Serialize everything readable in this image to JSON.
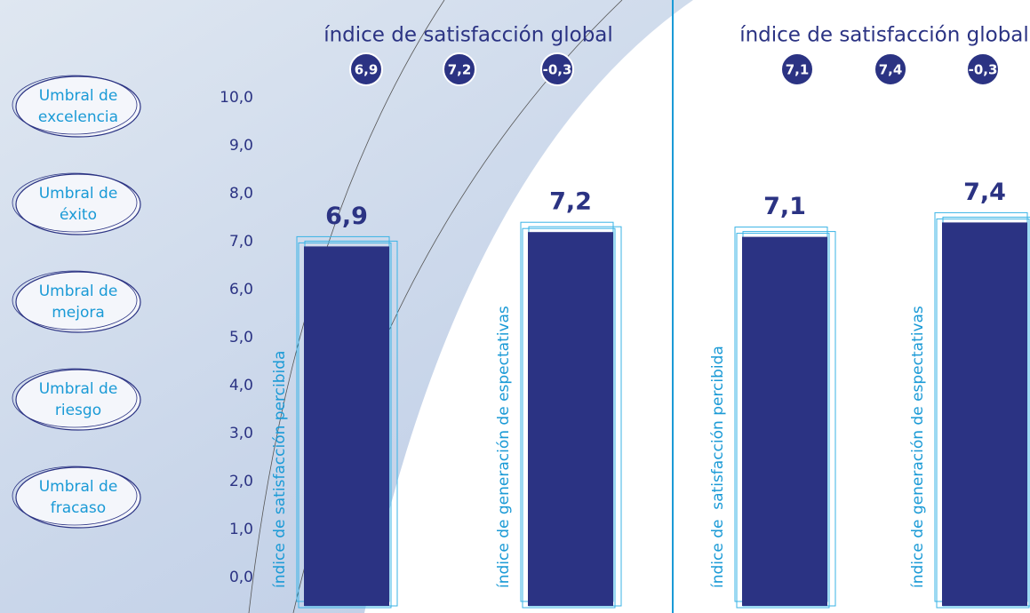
{
  "thresholds": [
    "Umbral de excelencia",
    "Umbral de éxito",
    "Umbral de mejora",
    "Umbral de riesgo",
    "Umbral de fracaso"
  ],
  "chart_data": [
    {
      "type": "bar",
      "title": "índice de satisfacción global",
      "global_index": {
        "values": [
          6.9,
          7.2,
          -0.3
        ],
        "value_labels": [
          "6,9",
          "7,2",
          "-0,3"
        ]
      },
      "categories": [
        "índice de satisfacción percibida",
        "índice de generación de espectativas"
      ],
      "values": [
        6.9,
        7.2
      ],
      "value_labels": [
        "6,9",
        "7,2"
      ],
      "color": "#2b3383",
      "ylim": [
        0,
        10
      ],
      "yticks": [
        {
          "value": 0,
          "label": "0,0"
        },
        {
          "value": 1,
          "label": "1,0"
        },
        {
          "value": 2,
          "label": "2,0"
        },
        {
          "value": 3,
          "label": "3,0"
        },
        {
          "value": 4,
          "label": "4,0"
        },
        {
          "value": 5,
          "label": "5,0"
        },
        {
          "value": 6,
          "label": "6,0"
        },
        {
          "value": 7,
          "label": "7,0"
        },
        {
          "value": 8,
          "label": "8,0"
        },
        {
          "value": 9,
          "label": "9,0"
        },
        {
          "value": 10,
          "label": "10,0"
        }
      ]
    },
    {
      "type": "bar",
      "title": "índice de satisfacción global",
      "global_index": {
        "values": [
          7.1,
          7.4,
          -0.3
        ],
        "value_labels": [
          "7,1",
          "7,4",
          "-0,3"
        ]
      },
      "categories": [
        "índice de  satisfacción percibida",
        "índice de generación de espectativas"
      ],
      "values": [
        7.1,
        7.4
      ],
      "value_labels": [
        "7,1",
        "7,4"
      ],
      "color": "#2b3383",
      "ylim": [
        0,
        10
      ]
    }
  ]
}
